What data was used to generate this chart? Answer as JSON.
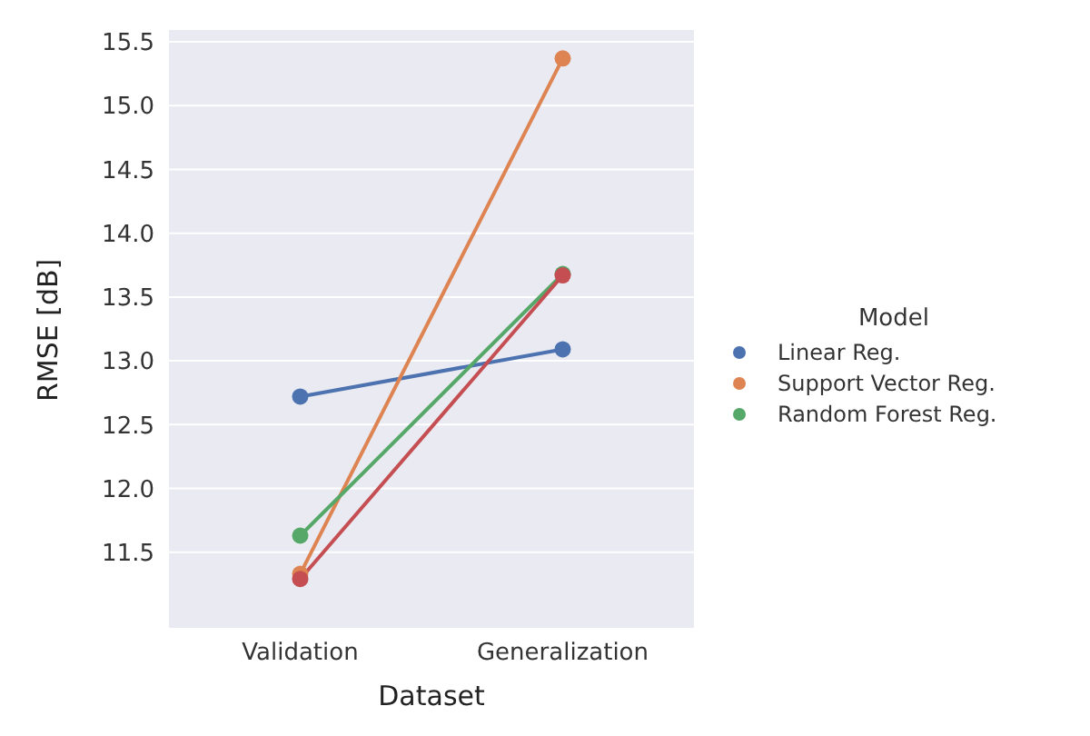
{
  "chart_data": {
    "type": "line",
    "xlabel": "Dataset",
    "ylabel": "RMSE [dB]",
    "legend_title": "Model",
    "categories": [
      "Validation",
      "Generalization"
    ],
    "series": [
      {
        "name": "Linear Reg.",
        "color": "#4c72b0",
        "values": [
          12.72,
          13.09
        ]
      },
      {
        "name": "Support Vector Reg.",
        "color": "#dd8452",
        "values": [
          11.33,
          15.37
        ]
      },
      {
        "name": "Random Forest Reg.",
        "color": "#55a868",
        "values": [
          11.63,
          13.68
        ]
      },
      {
        "color": "#c44e52",
        "values": [
          11.29,
          13.67
        ]
      }
    ],
    "ylim": [
      10.9,
      15.6
    ],
    "yticks": [
      11.5,
      {
        "value": 12,
        "label": "12.0"
      },
      12.5,
      {
        "value": 13,
        "label": "13.0"
      },
      13.5,
      {
        "value": 14,
        "label": "14.0"
      },
      14.5,
      {
        "value": 15,
        "label": "15.0"
      },
      15.5
    ],
    "grid": "y",
    "legend": "right",
    "marker": "circle",
    "line_style": "solid"
  }
}
